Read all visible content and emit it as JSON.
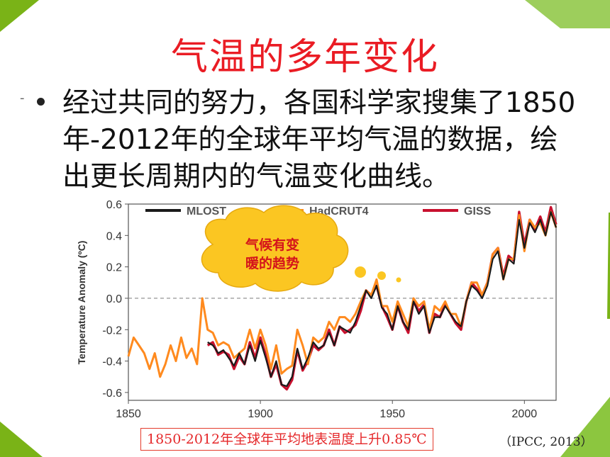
{
  "slide": {
    "title": "气温的多年变化",
    "bullet_text": "经过共同的努力，各国科学家搜集了1850年-2012年的全球年平均气温的数据，绘出更长周期内的气温变化曲线。",
    "dash": "-",
    "caption": "1850-2012年全球年平均地表温度上升0.85℃",
    "source": "（IPCC, 2013）",
    "callout": {
      "line1": "气候有变",
      "line2": "暖的趋势"
    }
  },
  "colors": {
    "title": "#ea1c24",
    "mlost": "#1a1a1a",
    "hadcrut4": "#ff8a1e",
    "giss": "#c8102e",
    "callout_fill": "#fbc622",
    "callout_text": "#d4131b",
    "deco_green": "#7ab317"
  },
  "chart_data": {
    "type": "line",
    "xlabel": "",
    "ylabel": "Temperature Anomaly (ºC)",
    "xlim": [
      1850,
      2012
    ],
    "ylim": [
      -0.65,
      0.6
    ],
    "x_ticks": [
      "1850",
      "1900",
      "1950",
      "2000"
    ],
    "y_ticks": [
      "0.6",
      "0.4",
      "0.2",
      "0.0",
      "-0.2",
      "-0.4",
      "-0.6"
    ],
    "zero_line": "dashed",
    "legend": "top",
    "series": [
      {
        "name": "MLOST",
        "x": [
          1880,
          1882,
          1884,
          1886,
          1888,
          1890,
          1892,
          1894,
          1896,
          1898,
          1900,
          1902,
          1904,
          1906,
          1908,
          1910,
          1912,
          1914,
          1916,
          1918,
          1920,
          1922,
          1924,
          1926,
          1928,
          1930,
          1932,
          1934,
          1936,
          1938,
          1940,
          1942,
          1944,
          1946,
          1948,
          1950,
          1952,
          1954,
          1956,
          1958,
          1960,
          1962,
          1964,
          1966,
          1968,
          1970,
          1972,
          1974,
          1976,
          1978,
          1980,
          1982,
          1984,
          1986,
          1988,
          1990,
          1992,
          1994,
          1996,
          1998,
          2000,
          2002,
          2004,
          2006,
          2008,
          2010,
          2012
        ],
        "y": [
          -0.28,
          -0.3,
          -0.35,
          -0.33,
          -0.38,
          -0.43,
          -0.35,
          -0.42,
          -0.3,
          -0.4,
          -0.27,
          -0.38,
          -0.5,
          -0.4,
          -0.55,
          -0.56,
          -0.5,
          -0.32,
          -0.45,
          -0.38,
          -0.28,
          -0.32,
          -0.3,
          -0.22,
          -0.3,
          -0.18,
          -0.2,
          -0.22,
          -0.15,
          -0.05,
          0.05,
          0.0,
          0.08,
          -0.06,
          -0.1,
          -0.2,
          -0.05,
          -0.15,
          -0.2,
          -0.02,
          -0.1,
          -0.05,
          -0.22,
          -0.12,
          -0.12,
          -0.05,
          -0.1,
          -0.15,
          -0.18,
          -0.02,
          0.08,
          0.05,
          0.0,
          0.08,
          0.25,
          0.3,
          0.12,
          0.25,
          0.22,
          0.5,
          0.32,
          0.48,
          0.42,
          0.5,
          0.4,
          0.55,
          0.45
        ]
      },
      {
        "name": "HadCRUT4",
        "x": [
          1850,
          1852,
          1854,
          1856,
          1858,
          1860,
          1862,
          1864,
          1866,
          1868,
          1870,
          1872,
          1874,
          1876,
          1878,
          1880,
          1882,
          1884,
          1886,
          1888,
          1890,
          1892,
          1894,
          1896,
          1898,
          1900,
          1902,
          1904,
          1906,
          1908,
          1910,
          1912,
          1914,
          1916,
          1918,
          1920,
          1922,
          1924,
          1926,
          1928,
          1930,
          1932,
          1934,
          1936,
          1938,
          1940,
          1942,
          1944,
          1946,
          1948,
          1950,
          1952,
          1954,
          1956,
          1958,
          1960,
          1962,
          1964,
          1966,
          1968,
          1970,
          1972,
          1974,
          1976,
          1978,
          1980,
          1982,
          1984,
          1986,
          1988,
          1990,
          1992,
          1994,
          1996,
          1998,
          2000,
          2002,
          2004,
          2006,
          2008,
          2010,
          2012
        ],
        "y": [
          -0.37,
          -0.25,
          -0.3,
          -0.35,
          -0.45,
          -0.35,
          -0.5,
          -0.42,
          -0.3,
          -0.4,
          -0.25,
          -0.38,
          -0.32,
          -0.42,
          0.0,
          -0.2,
          -0.22,
          -0.3,
          -0.28,
          -0.3,
          -0.38,
          -0.35,
          -0.32,
          -0.2,
          -0.32,
          -0.2,
          -0.3,
          -0.45,
          -0.3,
          -0.48,
          -0.45,
          -0.43,
          -0.2,
          -0.3,
          -0.42,
          -0.25,
          -0.28,
          -0.25,
          -0.15,
          -0.2,
          -0.12,
          -0.12,
          -0.15,
          -0.1,
          -0.02,
          0.05,
          0.02,
          0.12,
          -0.05,
          -0.05,
          -0.15,
          -0.02,
          -0.1,
          -0.18,
          0.0,
          -0.05,
          -0.02,
          -0.2,
          -0.05,
          -0.08,
          -0.02,
          -0.1,
          -0.1,
          -0.18,
          -0.02,
          0.1,
          0.1,
          0.02,
          0.1,
          0.28,
          0.32,
          0.12,
          0.25,
          0.25,
          0.53,
          0.3,
          0.5,
          0.45,
          0.48,
          0.4,
          0.55,
          0.45
        ]
      },
      {
        "name": "GISS",
        "x": [
          1880,
          1882,
          1884,
          1886,
          1888,
          1890,
          1892,
          1894,
          1896,
          1898,
          1900,
          1902,
          1904,
          1906,
          1908,
          1910,
          1912,
          1914,
          1916,
          1918,
          1920,
          1922,
          1924,
          1926,
          1928,
          1930,
          1932,
          1934,
          1936,
          1938,
          1940,
          1942,
          1944,
          1946,
          1948,
          1950,
          1952,
          1954,
          1956,
          1958,
          1960,
          1962,
          1964,
          1966,
          1968,
          1970,
          1972,
          1974,
          1976,
          1978,
          1980,
          1982,
          1984,
          1986,
          1988,
          1990,
          1992,
          1994,
          1996,
          1998,
          2000,
          2002,
          2004,
          2006,
          2008,
          2010,
          2012
        ],
        "y": [
          -0.3,
          -0.28,
          -0.36,
          -0.34,
          -0.36,
          -0.45,
          -0.37,
          -0.42,
          -0.28,
          -0.38,
          -0.25,
          -0.36,
          -0.5,
          -0.42,
          -0.55,
          -0.58,
          -0.52,
          -0.33,
          -0.46,
          -0.4,
          -0.3,
          -0.33,
          -0.3,
          -0.2,
          -0.3,
          -0.18,
          -0.22,
          -0.2,
          -0.17,
          -0.08,
          0.05,
          0.02,
          0.08,
          -0.05,
          -0.12,
          -0.2,
          -0.05,
          -0.15,
          -0.22,
          -0.02,
          -0.08,
          -0.04,
          -0.22,
          -0.1,
          -0.12,
          -0.04,
          -0.1,
          -0.16,
          -0.2,
          -0.02,
          0.1,
          0.06,
          0.02,
          0.1,
          0.28,
          0.32,
          0.14,
          0.27,
          0.24,
          0.55,
          0.34,
          0.5,
          0.44,
          0.52,
          0.42,
          0.58,
          0.47
        ]
      }
    ]
  }
}
